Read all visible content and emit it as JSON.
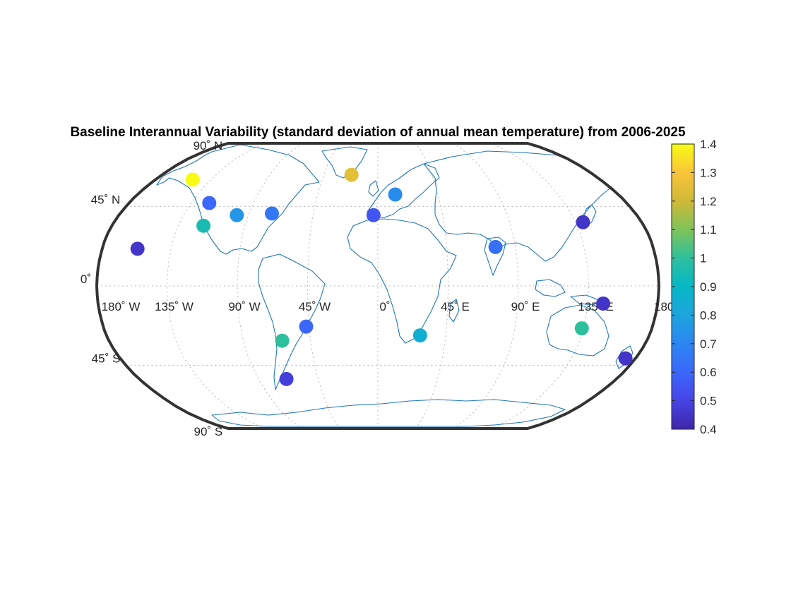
{
  "title": "Baseline Interannual Variability (standard deviation of annual mean temperature) from 2006-2025",
  "map": {
    "projection": "robinson",
    "coastline_color": "#1f77b4",
    "frame_color": "#333333",
    "graticule_color": "#b8b8b8",
    "lat_labels": [
      {
        "lat": 90,
        "text": "90˚ N"
      },
      {
        "lat": 45,
        "text": "45˚ N"
      },
      {
        "lat": 0,
        "text": "0˚"
      },
      {
        "lat": -45,
        "text": "45˚ S"
      },
      {
        "lat": -90,
        "text": "90˚ S"
      }
    ],
    "lon_labels": [
      {
        "lon": -180,
        "text": "180˚ W"
      },
      {
        "lon": -135,
        "text": "135˚ W"
      },
      {
        "lon": -90,
        "text": "90˚ W"
      },
      {
        "lon": -45,
        "text": "45˚ W"
      },
      {
        "lon": 0,
        "text": "0˚"
      },
      {
        "lon": 45,
        "text": "45˚ E"
      },
      {
        "lon": 90,
        "text": "90˚ E"
      },
      {
        "lon": 135,
        "text": "135˚ E"
      },
      {
        "lon": 180,
        "text": "180˚"
      }
    ]
  },
  "chart_data": {
    "type": "scatter",
    "title": "Baseline Interannual Variability (standard deviation of annual mean temperature) from 2006-2025",
    "colormap": "parula",
    "clim": [
      0.4,
      1.4
    ],
    "colorbar_ticks": [
      "0.4",
      "0.5",
      "0.6",
      "0.7",
      "0.8",
      "0.9",
      "1",
      "1.1",
      "1.2",
      "1.3",
      "1.4"
    ],
    "points": [
      {
        "lon": -150,
        "lat": 61,
        "value": 1.4
      },
      {
        "lon": -157,
        "lat": 21,
        "value": 0.45
      },
      {
        "lon": -122,
        "lat": 47,
        "value": 0.6
      },
      {
        "lon": -118,
        "lat": 34,
        "value": 0.95
      },
      {
        "lon": -98,
        "lat": 40,
        "value": 0.75
      },
      {
        "lon": -74,
        "lat": 41,
        "value": 0.65
      },
      {
        "lon": -22,
        "lat": 64,
        "value": 1.25
      },
      {
        "lon": 13,
        "lat": 52,
        "value": 0.72
      },
      {
        "lon": -3,
        "lat": 40,
        "value": 0.55
      },
      {
        "lon": 77,
        "lat": 22,
        "value": 0.63
      },
      {
        "lon": 140,
        "lat": 36,
        "value": 0.45
      },
      {
        "lon": 145,
        "lat": -10,
        "value": 0.45
      },
      {
        "lon": 134,
        "lat": -24,
        "value": 1.0
      },
      {
        "lon": 173,
        "lat": -41,
        "value": 0.45
      },
      {
        "lon": 28,
        "lat": -28,
        "value": 0.85
      },
      {
        "lon": -47,
        "lat": -23,
        "value": 0.6
      },
      {
        "lon": -64,
        "lat": -31,
        "value": 1.0
      },
      {
        "lon": -69,
        "lat": -53,
        "value": 0.48
      }
    ]
  }
}
